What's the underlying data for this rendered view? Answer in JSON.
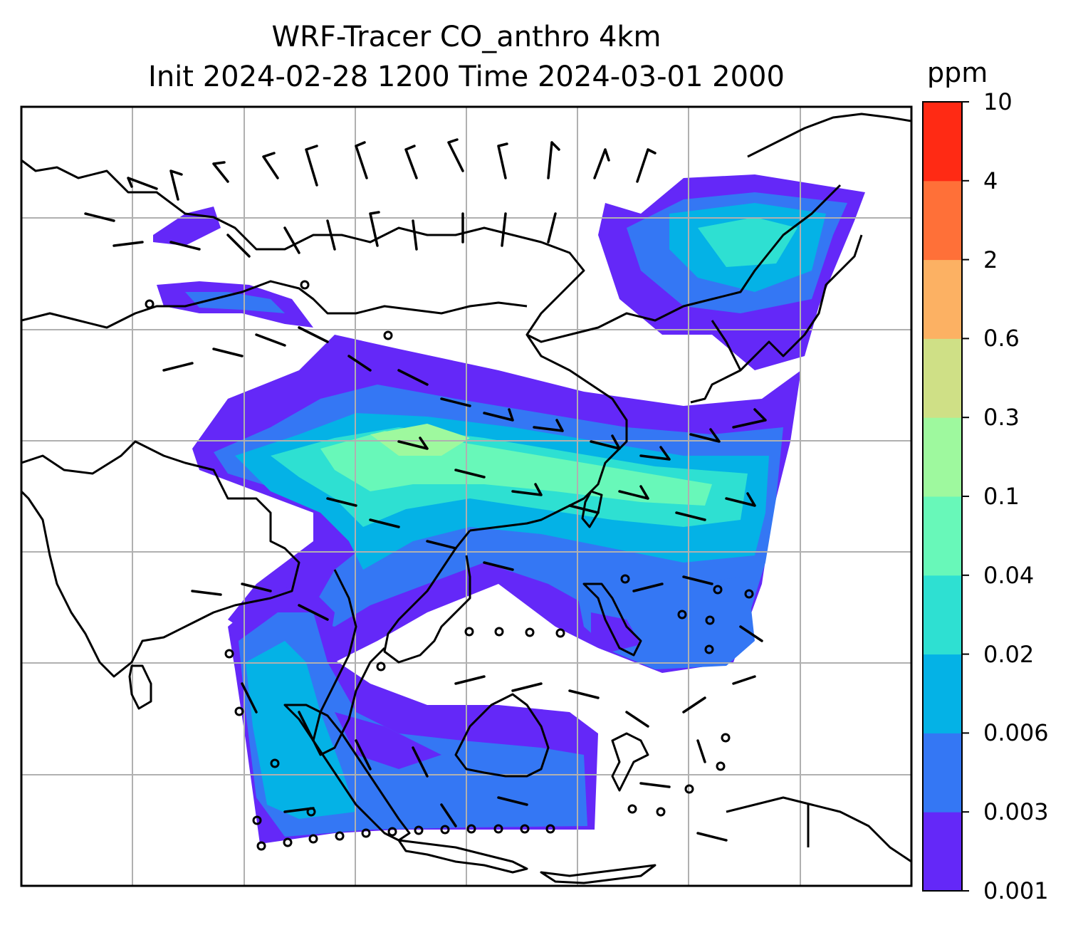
{
  "title": {
    "line1": "WRF-Tracer CO_anthro 4km",
    "line2": "Init 2024-02-28 1200 Time 2024-03-01 2000"
  },
  "colorbar": {
    "unit": "ppm",
    "tick_labels": [
      "0.001",
      "0.003",
      "0.006",
      "0.02",
      "0.04",
      "0.1",
      "0.3",
      "0.6",
      "2",
      "4",
      "10"
    ],
    "bin_colors": [
      "#6428f8",
      "#3477f4",
      "#04b2e6",
      "#2ee0d2",
      "#68f8b9",
      "#9ef99e",
      "#cfe086",
      "#fcb163",
      "#ff7038",
      "#ff2a14"
    ]
  },
  "map": {
    "variable": "CO_anthro",
    "overlay": "wind barbs",
    "gridlines": true,
    "coastlines": true,
    "borders": true
  }
}
